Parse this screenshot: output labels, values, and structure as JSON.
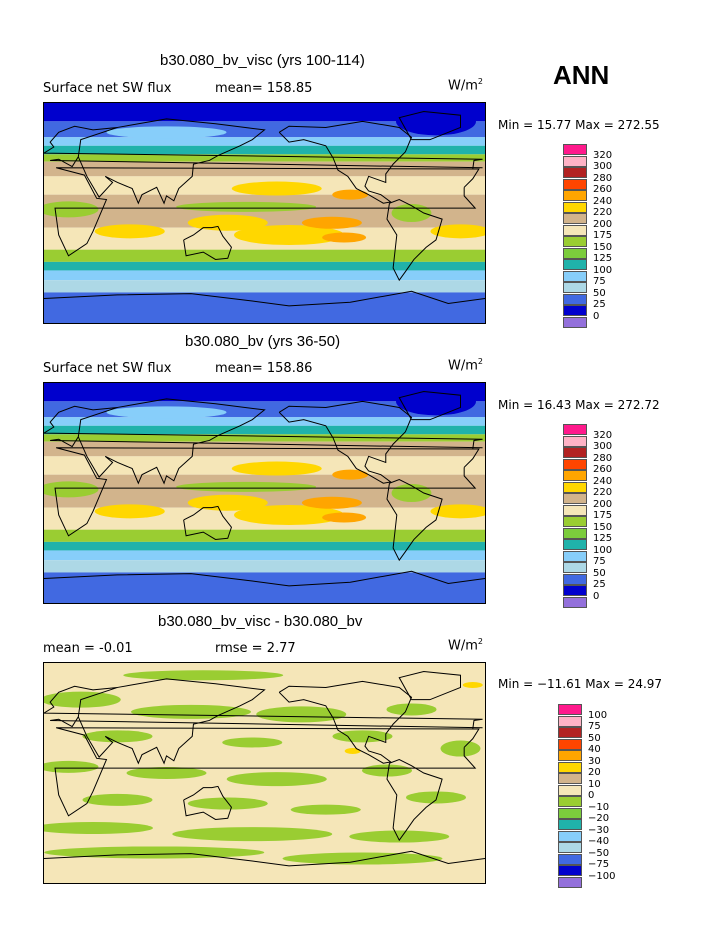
{
  "figure": {
    "season": "ANN"
  },
  "panels": [
    {
      "title": "b30.080_bv_visc (yrs 100-114)",
      "variable": "Surface net SW flux",
      "mean_text": "mean= 158.85",
      "units_base": "W/m",
      "units_sup": "2",
      "minmax_text": "Min =   15.77 Max = 272.55"
    },
    {
      "title": "b30.080_bv (yrs 36-50)",
      "variable": "Surface net SW flux",
      "mean_text": "mean= 158.86",
      "units_base": "W/m",
      "units_sup": "2",
      "minmax_text": "Min =   16.43 Max = 272.72"
    },
    {
      "title": "b30.080_bv_visc - b30.080_bv",
      "mean_text": "mean =   -0.01",
      "rmse_text": "rmse =    2.77",
      "units_base": "W/m",
      "units_sup": "2",
      "minmax_text": "Min = −11.61 Max =   24.97"
    }
  ],
  "chart_data": [
    {
      "type": "heatmap",
      "title": "b30.080_bv_visc (yrs 100-114)",
      "variable": "Surface net SW flux",
      "units": "W/m^2",
      "mean": 158.85,
      "min": 15.77,
      "max": 272.55,
      "colorbar_levels": [
        "320",
        "300",
        "280",
        "260",
        "240",
        "220",
        "200",
        "175",
        "150",
        "125",
        "100",
        "75",
        "50",
        "25",
        "0"
      ],
      "colorbar_colors": [
        "#ff1a8c",
        "#ffb3c6",
        "#b22222",
        "#ff4500",
        "#ffa500",
        "#ffd700",
        "#d2b48c",
        "#f5e6b8",
        "#9acd32",
        "#7ccd3c",
        "#20b2aa",
        "#87cefa",
        "#add8e6",
        "#4169e1",
        "#0000cd",
        "#9370db"
      ]
    },
    {
      "type": "heatmap",
      "title": "b30.080_bv (yrs 36-50)",
      "variable": "Surface net SW flux",
      "units": "W/m^2",
      "mean": 158.86,
      "min": 16.43,
      "max": 272.72,
      "colorbar_levels": [
        "320",
        "300",
        "280",
        "260",
        "240",
        "220",
        "200",
        "175",
        "150",
        "125",
        "100",
        "75",
        "50",
        "25",
        "0"
      ],
      "colorbar_colors": [
        "#ff1a8c",
        "#ffb3c6",
        "#b22222",
        "#ff4500",
        "#ffa500",
        "#ffd700",
        "#d2b48c",
        "#f5e6b8",
        "#9acd32",
        "#7ccd3c",
        "#20b2aa",
        "#87cefa",
        "#add8e6",
        "#4169e1",
        "#0000cd",
        "#9370db"
      ]
    },
    {
      "type": "heatmap",
      "title": "b30.080_bv_visc - b30.080_bv",
      "units": "W/m^2",
      "mean": -0.01,
      "rmse": 2.77,
      "min": -11.61,
      "max": 24.97,
      "colorbar_levels": [
        "100",
        "75",
        "50",
        "40",
        "30",
        "20",
        "10",
        "0",
        "−10",
        "−20",
        "−30",
        "−40",
        "−50",
        "−75",
        "−100"
      ],
      "colorbar_colors": [
        "#ff1a8c",
        "#ffb3c6",
        "#b22222",
        "#ff4500",
        "#ffa500",
        "#ffd700",
        "#d2b48c",
        "#f5e6b8",
        "#9acd32",
        "#7ccd3c",
        "#20b2aa",
        "#87cefa",
        "#add8e6",
        "#4169e1",
        "#0000cd",
        "#9370db"
      ]
    }
  ]
}
